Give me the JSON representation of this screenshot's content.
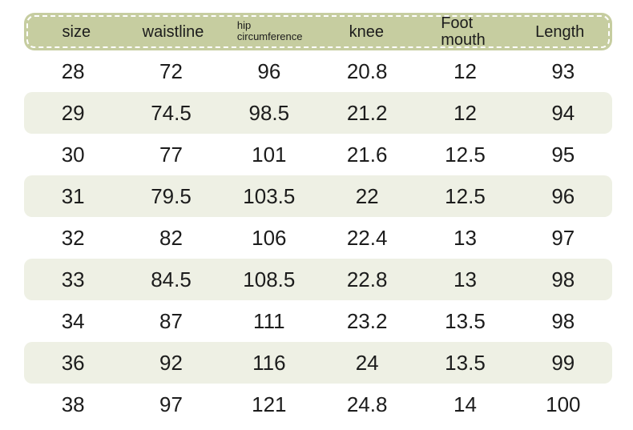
{
  "colors": {
    "header_bg": "#c6cda0",
    "header_border": "#ffffff",
    "row_alt_bg": "#eef0e4",
    "text": "#1c1c1c",
    "page_bg": "#ffffff"
  },
  "table": {
    "columns": [
      {
        "key": "size",
        "label": "size",
        "style": "single"
      },
      {
        "key": "waistline",
        "label": "waistline",
        "style": "single"
      },
      {
        "key": "hip-circumference",
        "label": "hip\ncircumference",
        "style": "two-line-small"
      },
      {
        "key": "knee",
        "label": "knee",
        "style": "single"
      },
      {
        "key": "foot-mouth",
        "label": "Foot\nmouth",
        "style": "two-line"
      },
      {
        "key": "length",
        "label": "Length",
        "style": "single"
      }
    ],
    "rows": [
      [
        "28",
        "72",
        "96",
        "20.8",
        "12",
        "93"
      ],
      [
        "29",
        "74.5",
        "98.5",
        "21.2",
        "12",
        "94"
      ],
      [
        "30",
        "77",
        "101",
        "21.6",
        "12.5",
        "95"
      ],
      [
        "31",
        "79.5",
        "103.5",
        "22",
        "12.5",
        "96"
      ],
      [
        "32",
        "82",
        "106",
        "22.4",
        "13",
        "97"
      ],
      [
        "33",
        "84.5",
        "108.5",
        "22.8",
        "13",
        "98"
      ],
      [
        "34",
        "87",
        "111",
        "23.2",
        "13.5",
        "98"
      ],
      [
        "36",
        "92",
        "116",
        "24",
        "13.5",
        "99"
      ],
      [
        "38",
        "97",
        "121",
        "24.8",
        "14",
        "100"
      ]
    ]
  }
}
